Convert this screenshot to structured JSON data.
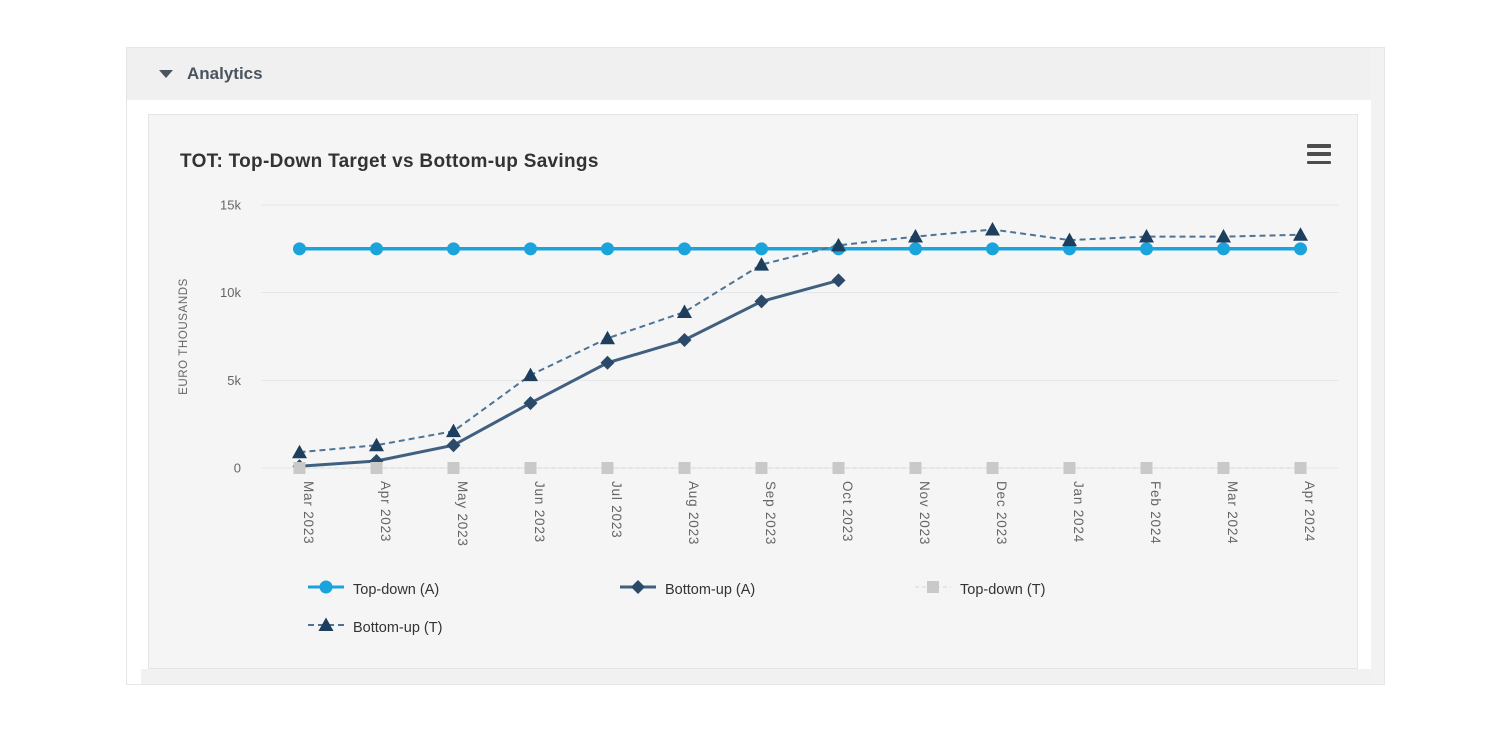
{
  "panel": {
    "header": {
      "title": "Analytics",
      "caret_icon": "caret-down"
    }
  },
  "card": {
    "menu_icon": "hamburger-menu"
  },
  "chart_data": {
    "type": "line",
    "title": "TOT: Top-Down Target vs Bottom-up Savings",
    "ylabel": "EURO THOUSANDS",
    "value_unit": "thousands (k)",
    "ylim": [
      0,
      15
    ],
    "yticks": [
      {
        "value": 0,
        "label": "0"
      },
      {
        "value": 5,
        "label": "5k"
      },
      {
        "value": 10,
        "label": "10k"
      },
      {
        "value": 15,
        "label": "15k"
      }
    ],
    "grid": true,
    "legend_position": "bottom",
    "categories": [
      "Mar 2023",
      "Apr 2023",
      "May 2023",
      "Jun 2023",
      "Jul 2023",
      "Aug 2023",
      "Sep 2023",
      "Oct 2023",
      "Nov 2023",
      "Dec 2023",
      "Jan 2024",
      "Feb 2024",
      "Mar 2024",
      "Apr 2024"
    ],
    "series": [
      {
        "name": "Top-down (A)",
        "marker": "circle",
        "dash": "solid",
        "dash_array": "",
        "line_width": 3.5,
        "color": "#1BA4DC",
        "marker_color": "#1BA4DC",
        "values": [
          12.5,
          12.5,
          12.5,
          12.5,
          12.5,
          12.5,
          12.5,
          12.5,
          12.5,
          12.5,
          12.5,
          12.5,
          12.5,
          12.5
        ]
      },
      {
        "name": "Bottom-up (A)",
        "marker": "diamond",
        "dash": "solid",
        "dash_array": "",
        "line_width": 3,
        "color": "#41607F",
        "marker_color": "#2B4A69",
        "values": [
          0.1,
          0.4,
          1.3,
          3.7,
          6.0,
          7.3,
          9.5,
          10.7,
          null,
          null,
          null,
          null,
          null,
          null
        ]
      },
      {
        "name": "Top-down (T)",
        "marker": "square",
        "dash": "dashed",
        "dash_array": "4,3",
        "line_width": 1.5,
        "color": "#D8E2EB",
        "marker_color": "#C9C9C9",
        "values": [
          0,
          0,
          0,
          0,
          0,
          0,
          0,
          0,
          0,
          0,
          0,
          0,
          0,
          0
        ]
      },
      {
        "name": "Bottom-up (T)",
        "marker": "triangle",
        "dash": "dashed",
        "dash_array": "6,4",
        "line_width": 2,
        "color": "#4D7495",
        "marker_color": "#1E3E5E",
        "values": [
          0.9,
          1.3,
          2.1,
          5.3,
          7.4,
          8.9,
          11.6,
          12.7,
          13.2,
          13.6,
          13.0,
          13.2,
          13.2,
          13.3
        ]
      }
    ]
  }
}
